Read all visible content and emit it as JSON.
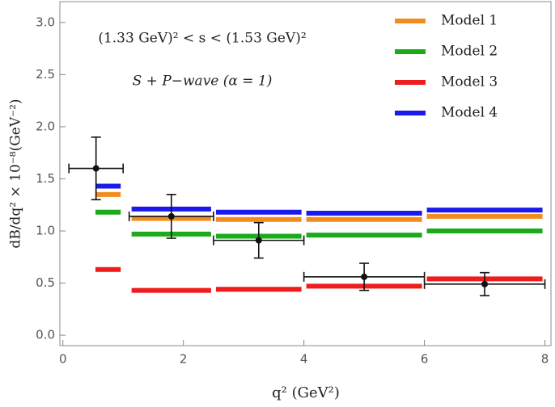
{
  "chart_data": {
    "type": "binned-models",
    "annotations": [
      "(1.33 GeV)² < s < (1.53 GeV)²",
      "S + P−wave (α = 1)"
    ],
    "x_label": "q² (GeV²)",
    "y_label": "dB/dq² × 10⁻⁸(GeV⁻²)",
    "xlim": [
      -0.05,
      8.1
    ],
    "ylim": [
      -0.1,
      3.2
    ],
    "xticks": [
      0,
      2,
      4,
      6,
      8
    ],
    "yticks": [
      {
        "value": 0,
        "label": "0.0"
      },
      0.5,
      {
        "value": 1,
        "label": "1.0"
      },
      1.5,
      {
        "value": 2,
        "label": "2.0"
      },
      2.5,
      {
        "value": 3,
        "label": "3.0"
      }
    ],
    "bin_starts": [
      0.5,
      1.1,
      2.5,
      4,
      6
    ],
    "bin_ends": [
      1,
      2.5,
      4,
      6,
      8
    ],
    "series": [
      {
        "name": "Model 1",
        "color": "#f28c1f",
        "values": [
          1.35,
          1.12,
          1.11,
          1.11,
          1.14
        ]
      },
      {
        "name": "Model 2",
        "color": "#1aaa1a",
        "values": [
          1.18,
          0.97,
          0.95,
          0.96,
          1.0
        ]
      },
      {
        "name": "Model 3",
        "color": "#ee1c1c",
        "values": [
          0.63,
          0.43,
          0.44,
          0.47,
          0.54
        ]
      },
      {
        "name": "Model 4",
        "color": "#1a1aee",
        "values": [
          1.43,
          1.21,
          1.18,
          1.17,
          1.2
        ]
      }
    ],
    "points": {
      "color": "#111111",
      "x": [
        0.55,
        1.8,
        3.25,
        5,
        7
      ],
      "y": [
        1.6,
        1.14,
        0.91,
        0.56,
        0.49
      ],
      "yerr": [
        0.3,
        0.21,
        0.17,
        0.13,
        0.11
      ],
      "x_low": [
        0.1,
        1.1,
        2.5,
        4,
        6
      ],
      "x_high": [
        1,
        2.5,
        4,
        6,
        8
      ]
    }
  }
}
